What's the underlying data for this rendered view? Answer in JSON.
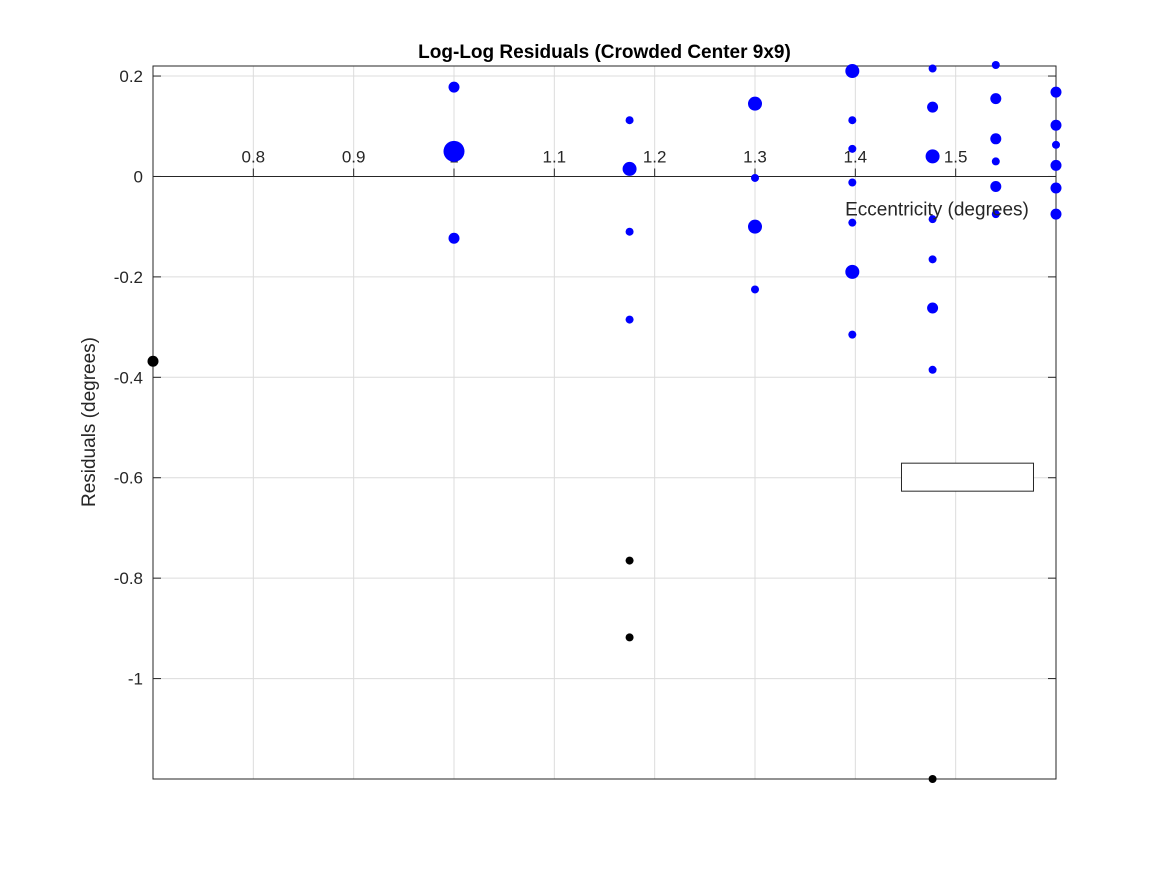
{
  "chart_data": {
    "type": "scatter",
    "title": "Log-Log Residuals (Crowded Center 9x9)",
    "xlabel": "Eccentricity (degrees)",
    "ylabel": "Residuals (degrees)",
    "xlim": [
      0.7,
      1.6
    ],
    "ylim": [
      -1.2,
      0.22
    ],
    "xticks": [
      0.8,
      0.9,
      1.0,
      1.1,
      1.2,
      1.3,
      1.4,
      1.5
    ],
    "xtick_labels": [
      "0.8",
      "0.9",
      "1",
      "1.1",
      "1.2",
      "1.3",
      "1.4",
      "1.5"
    ],
    "yticks": [
      0.2,
      0,
      -0.2,
      -0.4,
      -0.6,
      -0.8,
      -1.0
    ],
    "ytick_labels": [
      "0.2",
      "0",
      "-0.2",
      "-0.4",
      "-0.6",
      "-0.8",
      "-1"
    ],
    "grid": true,
    "x_axis_location": "origin",
    "series": [
      {
        "color": "#0000ff",
        "points": [
          {
            "x": 1.0,
            "y": 0.05,
            "size": "large"
          },
          {
            "x": 1.0,
            "y": 0.178,
            "size": "small"
          },
          {
            "x": 1.0,
            "y": -0.123,
            "size": "small"
          },
          {
            "x": 1.175,
            "y": 0.112,
            "size": "tiny"
          },
          {
            "x": 1.175,
            "y": 0.015,
            "size": "medium"
          },
          {
            "x": 1.175,
            "y": -0.11,
            "size": "tiny"
          },
          {
            "x": 1.175,
            "y": -0.285,
            "size": "tiny"
          },
          {
            "x": 1.3,
            "y": 0.145,
            "size": "medium"
          },
          {
            "x": 1.3,
            "y": -0.003,
            "size": "tiny"
          },
          {
            "x": 1.3,
            "y": -0.1,
            "size": "medium"
          },
          {
            "x": 1.3,
            "y": -0.225,
            "size": "tiny"
          },
          {
            "x": 1.397,
            "y": 0.21,
            "size": "medium"
          },
          {
            "x": 1.397,
            "y": 0.112,
            "size": "tiny"
          },
          {
            "x": 1.397,
            "y": 0.055,
            "size": "tiny"
          },
          {
            "x": 1.397,
            "y": -0.012,
            "size": "tiny"
          },
          {
            "x": 1.397,
            "y": -0.092,
            "size": "tiny"
          },
          {
            "x": 1.397,
            "y": -0.19,
            "size": "medium"
          },
          {
            "x": 1.397,
            "y": -0.315,
            "size": "tiny"
          },
          {
            "x": 1.477,
            "y": 0.215,
            "size": "tiny"
          },
          {
            "x": 1.477,
            "y": 0.138,
            "size": "small"
          },
          {
            "x": 1.477,
            "y": 0.04,
            "size": "medium"
          },
          {
            "x": 1.477,
            "y": -0.085,
            "size": "tiny"
          },
          {
            "x": 1.477,
            "y": -0.165,
            "size": "tiny"
          },
          {
            "x": 1.477,
            "y": -0.262,
            "size": "small"
          },
          {
            "x": 1.477,
            "y": -0.385,
            "size": "tiny"
          },
          {
            "x": 1.54,
            "y": 0.222,
            "size": "tiny"
          },
          {
            "x": 1.54,
            "y": 0.155,
            "size": "small"
          },
          {
            "x": 1.54,
            "y": 0.075,
            "size": "small"
          },
          {
            "x": 1.54,
            "y": 0.03,
            "size": "tiny"
          },
          {
            "x": 1.54,
            "y": -0.02,
            "size": "small"
          },
          {
            "x": 1.54,
            "y": -0.075,
            "size": "tiny"
          },
          {
            "x": 1.6,
            "y": 0.168,
            "size": "small"
          },
          {
            "x": 1.6,
            "y": 0.102,
            "size": "small"
          },
          {
            "x": 1.6,
            "y": 0.063,
            "size": "tiny"
          },
          {
            "x": 1.6,
            "y": 0.022,
            "size": "small"
          },
          {
            "x": 1.6,
            "y": -0.023,
            "size": "small"
          },
          {
            "x": 1.6,
            "y": -0.075,
            "size": "small"
          }
        ]
      },
      {
        "color": "#000000",
        "points": [
          {
            "x": 0.7,
            "y": -0.368,
            "size": "small"
          },
          {
            "x": 1.175,
            "y": -0.765,
            "size": "tiny"
          },
          {
            "x": 1.175,
            "y": -0.918,
            "size": "tiny"
          },
          {
            "x": 1.477,
            "y": -1.2,
            "size": "tiny"
          }
        ]
      }
    ],
    "legend": {
      "position": "right",
      "entries": []
    }
  }
}
